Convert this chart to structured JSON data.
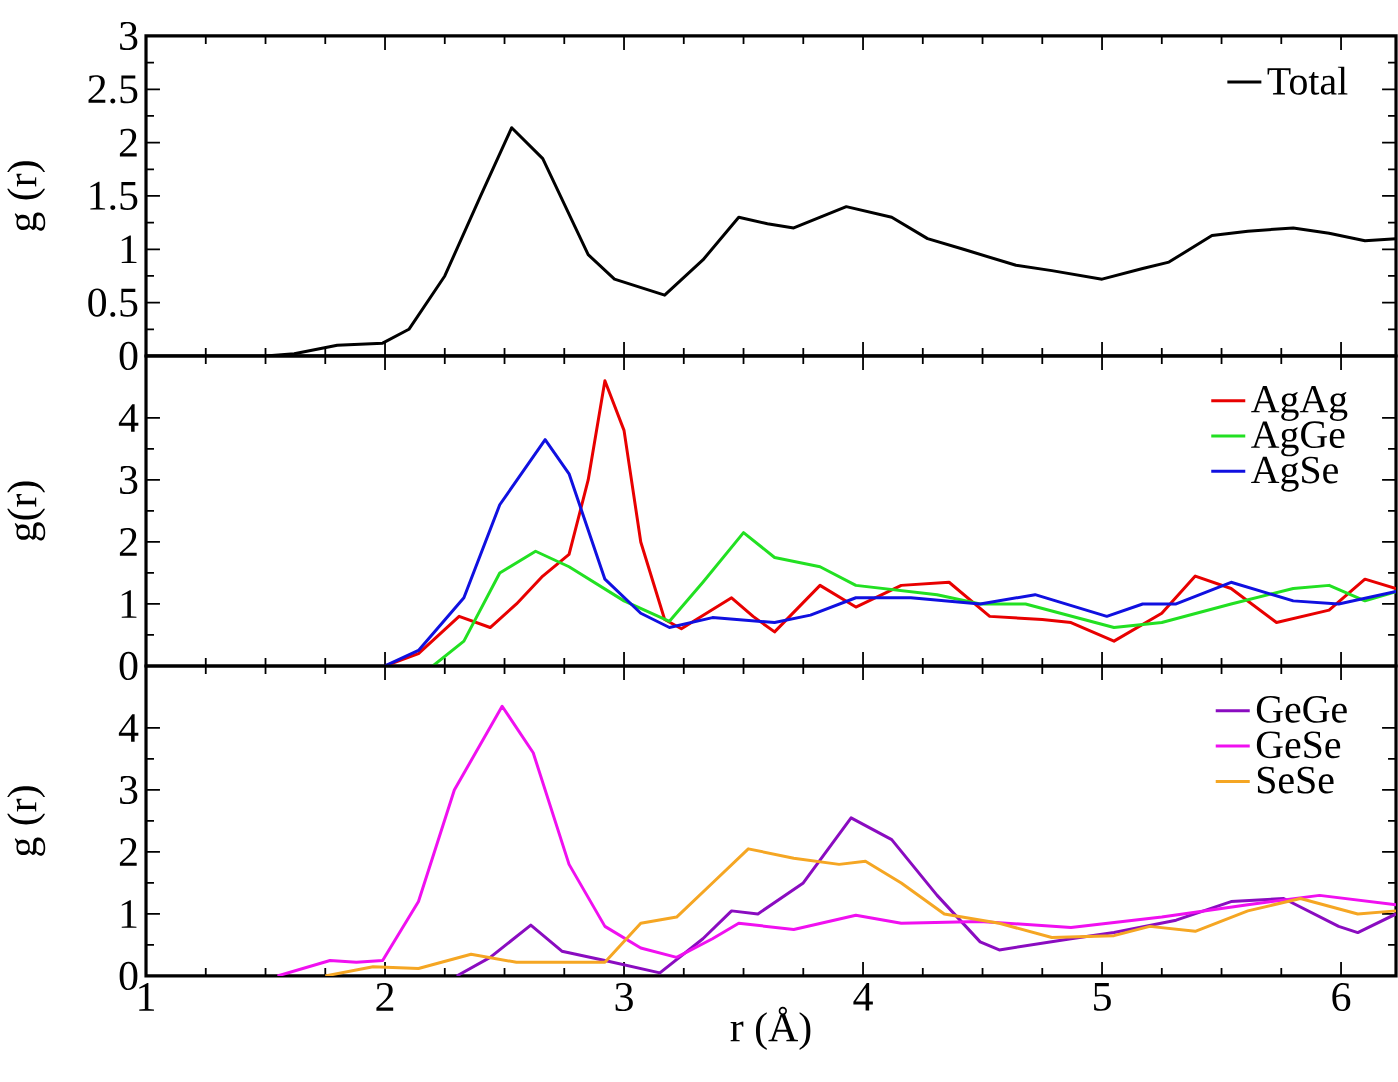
{
  "chart_data": [
    {
      "type": "line",
      "ylabel": "g (r)",
      "xlim": [
        1,
        6.23
      ],
      "ylim": [
        0,
        3
      ],
      "xticks": [
        1,
        2,
        3,
        4,
        5,
        6
      ],
      "yticks": [
        0,
        0.5,
        1,
        1.5,
        2,
        2.5,
        3
      ],
      "tick_labels": "y",
      "legend": "top right",
      "series": [
        {
          "name": "Total",
          "color": "#000000",
          "x": [
            1.5,
            1.62,
            1.8,
            1.99,
            2.1,
            2.25,
            2.4,
            2.53,
            2.66,
            2.85,
            2.96,
            3.17,
            3.33,
            3.48,
            3.6,
            3.71,
            3.93,
            4.12,
            4.27,
            4.42,
            4.64,
            4.79,
            5.0,
            5.17,
            5.28,
            5.46,
            5.61,
            5.8,
            5.95,
            6.1,
            6.23
          ],
          "values": [
            0,
            0.02,
            0.1,
            0.12,
            0.25,
            0.75,
            1.5,
            2.14,
            1.85,
            0.95,
            0.72,
            0.57,
            0.9,
            1.3,
            1.24,
            1.2,
            1.4,
            1.3,
            1.1,
            1.0,
            0.85,
            0.8,
            0.72,
            0.82,
            0.88,
            1.13,
            1.17,
            1.2,
            1.15,
            1.08,
            1.1
          ]
        }
      ]
    },
    {
      "type": "line",
      "ylabel": "g(r)",
      "xlim": [
        1,
        6.23
      ],
      "ylim": [
        0,
        5
      ],
      "xticks": [
        1,
        2,
        3,
        4,
        5,
        6
      ],
      "yticks": [
        0,
        1,
        2,
        3,
        4
      ],
      "tick_labels": "y",
      "legend": "top right",
      "series": [
        {
          "name": "AgAg",
          "color": "#e80000",
          "x": [
            2.0,
            2.14,
            2.31,
            2.44,
            2.55,
            2.66,
            2.77,
            2.85,
            2.92,
            3.0,
            3.07,
            3.17,
            3.24,
            3.45,
            3.54,
            3.63,
            3.82,
            3.97,
            4.16,
            4.36,
            4.53,
            4.75,
            4.87,
            5.05,
            5.25,
            5.39,
            5.54,
            5.73,
            5.95,
            6.1,
            6.23
          ],
          "values": [
            0,
            0.2,
            0.8,
            0.62,
            1.0,
            1.45,
            1.8,
            3.0,
            4.6,
            3.8,
            2.0,
            0.75,
            0.6,
            1.1,
            0.8,
            0.55,
            1.3,
            0.95,
            1.3,
            1.35,
            0.8,
            0.75,
            0.7,
            0.4,
            0.85,
            1.45,
            1.25,
            0.7,
            0.9,
            1.4,
            1.25
          ]
        },
        {
          "name": "AgGe",
          "color": "#22e022",
          "x": [
            2.2,
            2.33,
            2.48,
            2.63,
            2.77,
            3.0,
            3.19,
            3.33,
            3.5,
            3.63,
            3.82,
            3.97,
            4.31,
            4.49,
            4.68,
            5.05,
            5.25,
            5.54,
            5.8,
            5.95,
            6.1,
            6.23
          ],
          "values": [
            0,
            0.4,
            1.5,
            1.85,
            1.6,
            1.05,
            0.72,
            1.35,
            2.15,
            1.75,
            1.6,
            1.3,
            1.15,
            1.0,
            1.0,
            0.62,
            0.7,
            1.0,
            1.25,
            1.3,
            1.05,
            1.2
          ]
        },
        {
          "name": "AgSe",
          "color": "#1010e0",
          "x": [
            2.0,
            2.14,
            2.33,
            2.48,
            2.67,
            2.77,
            2.92,
            3.07,
            3.19,
            3.37,
            3.63,
            3.78,
            3.97,
            4.2,
            4.49,
            4.72,
            5.02,
            5.17,
            5.31,
            5.54,
            5.8,
            5.99,
            6.23
          ],
          "values": [
            0,
            0.25,
            1.1,
            2.6,
            3.65,
            3.1,
            1.4,
            0.85,
            0.62,
            0.78,
            0.7,
            0.82,
            1.1,
            1.1,
            1.0,
            1.15,
            0.8,
            1.0,
            1.0,
            1.35,
            1.05,
            1.0,
            1.2
          ]
        }
      ]
    },
    {
      "type": "line",
      "ylabel": "g (r)",
      "xlabel": "r (Å)",
      "xlim": [
        1,
        6.23
      ],
      "ylim": [
        0,
        5
      ],
      "xticks": [
        1,
        2,
        3,
        4,
        5,
        6
      ],
      "yticks": [
        0,
        1,
        2,
        3,
        4
      ],
      "legend": "top right",
      "series": [
        {
          "name": "GeGe",
          "color": "#8a0cc0",
          "x": [
            2.3,
            2.44,
            2.61,
            2.74,
            2.92,
            3.15,
            3.33,
            3.45,
            3.56,
            3.75,
            3.95,
            4.12,
            4.31,
            4.49,
            4.57,
            4.87,
            5.05,
            5.31,
            5.54,
            5.76,
            5.99,
            6.07,
            6.23
          ],
          "values": [
            0,
            0.3,
            0.82,
            0.4,
            0.25,
            0.05,
            0.6,
            1.05,
            1.0,
            1.5,
            2.55,
            2.2,
            1.3,
            0.55,
            0.42,
            0.6,
            0.7,
            0.9,
            1.2,
            1.25,
            0.8,
            0.7,
            1.0
          ]
        },
        {
          "name": "GeSe",
          "color": "#f010f0",
          "x": [
            1.55,
            1.77,
            1.88,
            1.99,
            2.14,
            2.29,
            2.49,
            2.62,
            2.77,
            2.92,
            3.07,
            3.22,
            3.37,
            3.48,
            3.71,
            3.97,
            4.16,
            4.49,
            4.87,
            5.25,
            5.61,
            5.91,
            6.23
          ],
          "values": [
            0,
            0.25,
            0.22,
            0.25,
            1.2,
            3.0,
            4.35,
            3.6,
            1.8,
            0.8,
            0.45,
            0.3,
            0.6,
            0.85,
            0.75,
            0.98,
            0.85,
            0.88,
            0.78,
            0.95,
            1.15,
            1.3,
            1.15
          ]
        },
        {
          "name": "SeSe",
          "color": "#f5a623",
          "x": [
            1.75,
            1.95,
            2.14,
            2.36,
            2.55,
            2.92,
            3.07,
            3.22,
            3.37,
            3.52,
            3.71,
            3.9,
            4.01,
            4.16,
            4.34,
            4.57,
            4.79,
            5.05,
            5.2,
            5.39,
            5.61,
            5.83,
            6.07,
            6.23
          ],
          "values": [
            0,
            0.15,
            0.12,
            0.35,
            0.22,
            0.22,
            0.85,
            0.95,
            1.5,
            2.05,
            1.9,
            1.8,
            1.85,
            1.5,
            1.0,
            0.85,
            0.62,
            0.65,
            0.8,
            0.72,
            1.05,
            1.25,
            1.0,
            1.05
          ]
        }
      ]
    }
  ]
}
